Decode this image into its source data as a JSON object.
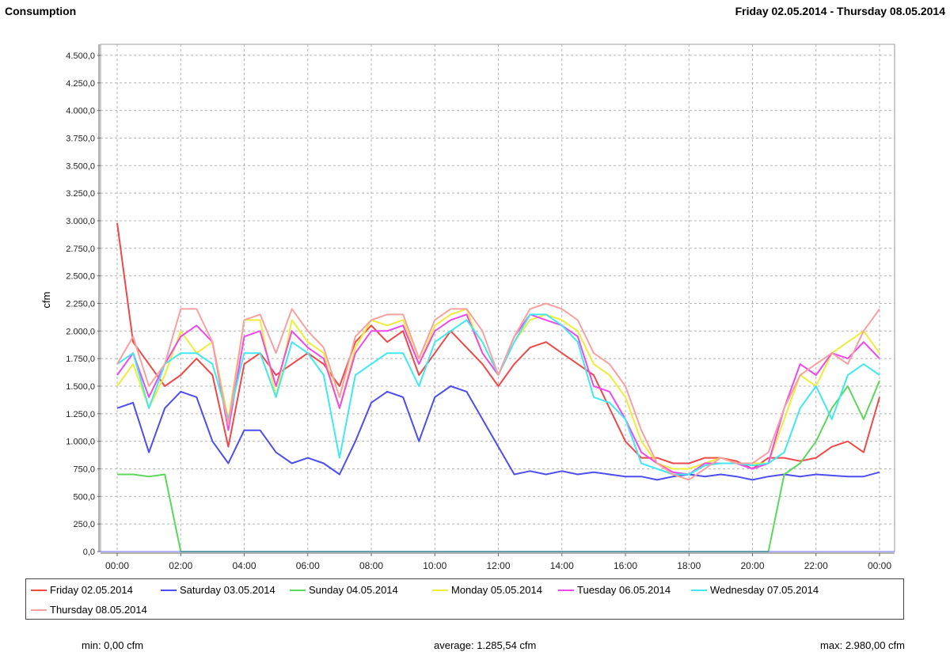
{
  "header": {
    "title": "Consumption",
    "date_range": "Friday 02.05.2014 - Thursday 08.05.2014"
  },
  "chart_data": {
    "type": "line",
    "ylabel": "cfm",
    "xlabel": "",
    "ylim": [
      0,
      4600
    ],
    "xlim": [
      0,
      24
    ],
    "y_ticks": [
      {
        "value": 0,
        "label": "0,0"
      },
      {
        "value": 250,
        "label": "250,0"
      },
      {
        "value": 500,
        "label": "500,0"
      },
      {
        "value": 750,
        "label": "750,0"
      },
      {
        "value": 1000,
        "label": "1.000,0"
      },
      {
        "value": 1250,
        "label": "1.250,0"
      },
      {
        "value": 1500,
        "label": "1.500,0"
      },
      {
        "value": 1750,
        "label": "1.750,0"
      },
      {
        "value": 2000,
        "label": "2.000,0"
      },
      {
        "value": 2250,
        "label": "2.250,0"
      },
      {
        "value": 2500,
        "label": "2.500,0"
      },
      {
        "value": 2750,
        "label": "2.750,0"
      },
      {
        "value": 3000,
        "label": "3.000,0"
      },
      {
        "value": 3250,
        "label": "3.250,0"
      },
      {
        "value": 3500,
        "label": "3.500,0"
      },
      {
        "value": 3750,
        "label": "3.750,0"
      },
      {
        "value": 4000,
        "label": "4.000,0"
      },
      {
        "value": 4250,
        "label": "4.250,0"
      },
      {
        "value": 4500,
        "label": "4.500,0"
      }
    ],
    "x_ticks": [
      {
        "value": 0,
        "label": "00:00"
      },
      {
        "value": 2,
        "label": "02:00"
      },
      {
        "value": 4,
        "label": "04:00"
      },
      {
        "value": 6,
        "label": "06:00"
      },
      {
        "value": 8,
        "label": "08:00"
      },
      {
        "value": 10,
        "label": "10:00"
      },
      {
        "value": 12,
        "label": "12:00"
      },
      {
        "value": 14,
        "label": "14:00"
      },
      {
        "value": 16,
        "label": "16:00"
      },
      {
        "value": 18,
        "label": "18:00"
      },
      {
        "value": 20,
        "label": "20:00"
      },
      {
        "value": 22,
        "label": "22:00"
      },
      {
        "value": 24,
        "label": "00:00"
      }
    ],
    "grid": true,
    "legend_position": "bottom",
    "x": [
      0,
      0.5,
      1,
      1.5,
      2,
      2.5,
      3,
      3.5,
      4,
      4.5,
      5,
      5.5,
      6,
      6.5,
      7,
      7.5,
      8,
      8.5,
      9,
      9.5,
      10,
      10.5,
      11,
      11.5,
      12,
      12.5,
      13,
      13.5,
      14,
      14.5,
      15,
      15.5,
      16,
      16.5,
      17,
      17.5,
      18,
      18.5,
      19,
      19.5,
      20,
      20.5,
      21,
      21.5,
      22,
      22.5,
      23,
      23.5,
      24
    ],
    "series": [
      {
        "name": "Friday 02.05.2014",
        "color": "#f04848",
        "values": [
          2980,
          1900,
          1700,
          1500,
          1600,
          1750,
          1600,
          950,
          1700,
          1800,
          1600,
          1700,
          1800,
          1700,
          1500,
          1900,
          2050,
          1900,
          2000,
          1600,
          1800,
          2000,
          1850,
          1700,
          1500,
          1700,
          1850,
          1900,
          1800,
          1700,
          1600,
          1300,
          1000,
          850,
          850,
          800,
          800,
          850,
          850,
          820,
          750,
          850,
          850,
          820,
          850,
          950,
          1000,
          900,
          1400
        ]
      },
      {
        "name": "Saturday 03.05.2014",
        "color": "#4d4df0",
        "values": [
          1300,
          1350,
          900,
          1300,
          1450,
          1400,
          1000,
          800,
          1100,
          1100,
          900,
          800,
          850,
          800,
          700,
          1000,
          1350,
          1450,
          1400,
          1000,
          1400,
          1500,
          1450,
          1200,
          950,
          700,
          730,
          700,
          730,
          700,
          720,
          700,
          680,
          680,
          650,
          680,
          700,
          680,
          700,
          680,
          650,
          680,
          700,
          680,
          700,
          690,
          680,
          680,
          720
        ]
      },
      {
        "name": "Sunday 04.05.2014",
        "color": "#5bd85b",
        "values": [
          700,
          700,
          680,
          700,
          0,
          0,
          0,
          0,
          0,
          0,
          0,
          0,
          0,
          0,
          0,
          0,
          0,
          0,
          0,
          0,
          0,
          0,
          0,
          0,
          0,
          0,
          0,
          0,
          0,
          0,
          0,
          0,
          0,
          0,
          0,
          0,
          0,
          0,
          0,
          0,
          0,
          0,
          700,
          800,
          1000,
          1300,
          1500,
          1200,
          1550
        ]
      },
      {
        "name": "Monday 05.05.2014",
        "color": "#ecec3a",
        "values": [
          1500,
          1700,
          1300,
          1600,
          2000,
          1800,
          1900,
          1200,
          2100,
          2100,
          1400,
          2100,
          1900,
          1800,
          1300,
          1850,
          2100,
          2050,
          2100,
          1700,
          2050,
          2150,
          2200,
          1800,
          1600,
          1900,
          2100,
          2150,
          2100,
          2000,
          1700,
          1600,
          1400,
          1000,
          800,
          750,
          750,
          800,
          850,
          800,
          800,
          800,
          1200,
          1600,
          1500,
          1800,
          1900,
          2000,
          1800
        ]
      },
      {
        "name": "Tuesday 06.05.2014",
        "color": "#ec4aec",
        "values": [
          1600,
          1800,
          1400,
          1700,
          1950,
          2050,
          1900,
          1100,
          1950,
          2000,
          1500,
          2000,
          1850,
          1750,
          1300,
          1800,
          2000,
          2000,
          2050,
          1700,
          2000,
          2100,
          2150,
          1800,
          1600,
          1950,
          2150,
          2100,
          2050,
          1950,
          1500,
          1450,
          1200,
          900,
          800,
          720,
          700,
          800,
          800,
          800,
          750,
          800,
          1300,
          1700,
          1600,
          1800,
          1750,
          1900,
          1750
        ]
      },
      {
        "name": "Wednesday 07.05.2014",
        "color": "#40e8f0",
        "values": [
          1700,
          1800,
          1300,
          1700,
          1800,
          1800,
          1700,
          1200,
          1800,
          1800,
          1400,
          1900,
          1800,
          1600,
          850,
          1600,
          1700,
          1800,
          1800,
          1500,
          1900,
          2000,
          2100,
          1900,
          1600,
          1900,
          2150,
          2150,
          2050,
          1900,
          1400,
          1350,
          1200,
          800,
          750,
          700,
          700,
          780,
          800,
          800,
          780,
          800,
          900,
          1300,
          1500,
          1200,
          1600,
          1700,
          1600
        ]
      },
      {
        "name": "Thursday 08.05.2014",
        "color": "#f8a0a0",
        "values": [
          1700,
          1950,
          1500,
          1700,
          2200,
          2200,
          1900,
          1150,
          2100,
          2150,
          1800,
          2200,
          2000,
          1850,
          1400,
          1950,
          2100,
          2150,
          2150,
          1750,
          2100,
          2200,
          2200,
          2000,
          1600,
          1950,
          2200,
          2250,
          2200,
          2100,
          1800,
          1700,
          1500,
          1100,
          800,
          700,
          650,
          750,
          850,
          800,
          800,
          900,
          1300,
          1600,
          1700,
          1800,
          1700,
          2000,
          2200
        ]
      }
    ],
    "stats": {
      "min": "min: 0,00 cfm",
      "average": "average: 1.285,54 cfm",
      "max": "max: 2.980,00 cfm"
    }
  }
}
